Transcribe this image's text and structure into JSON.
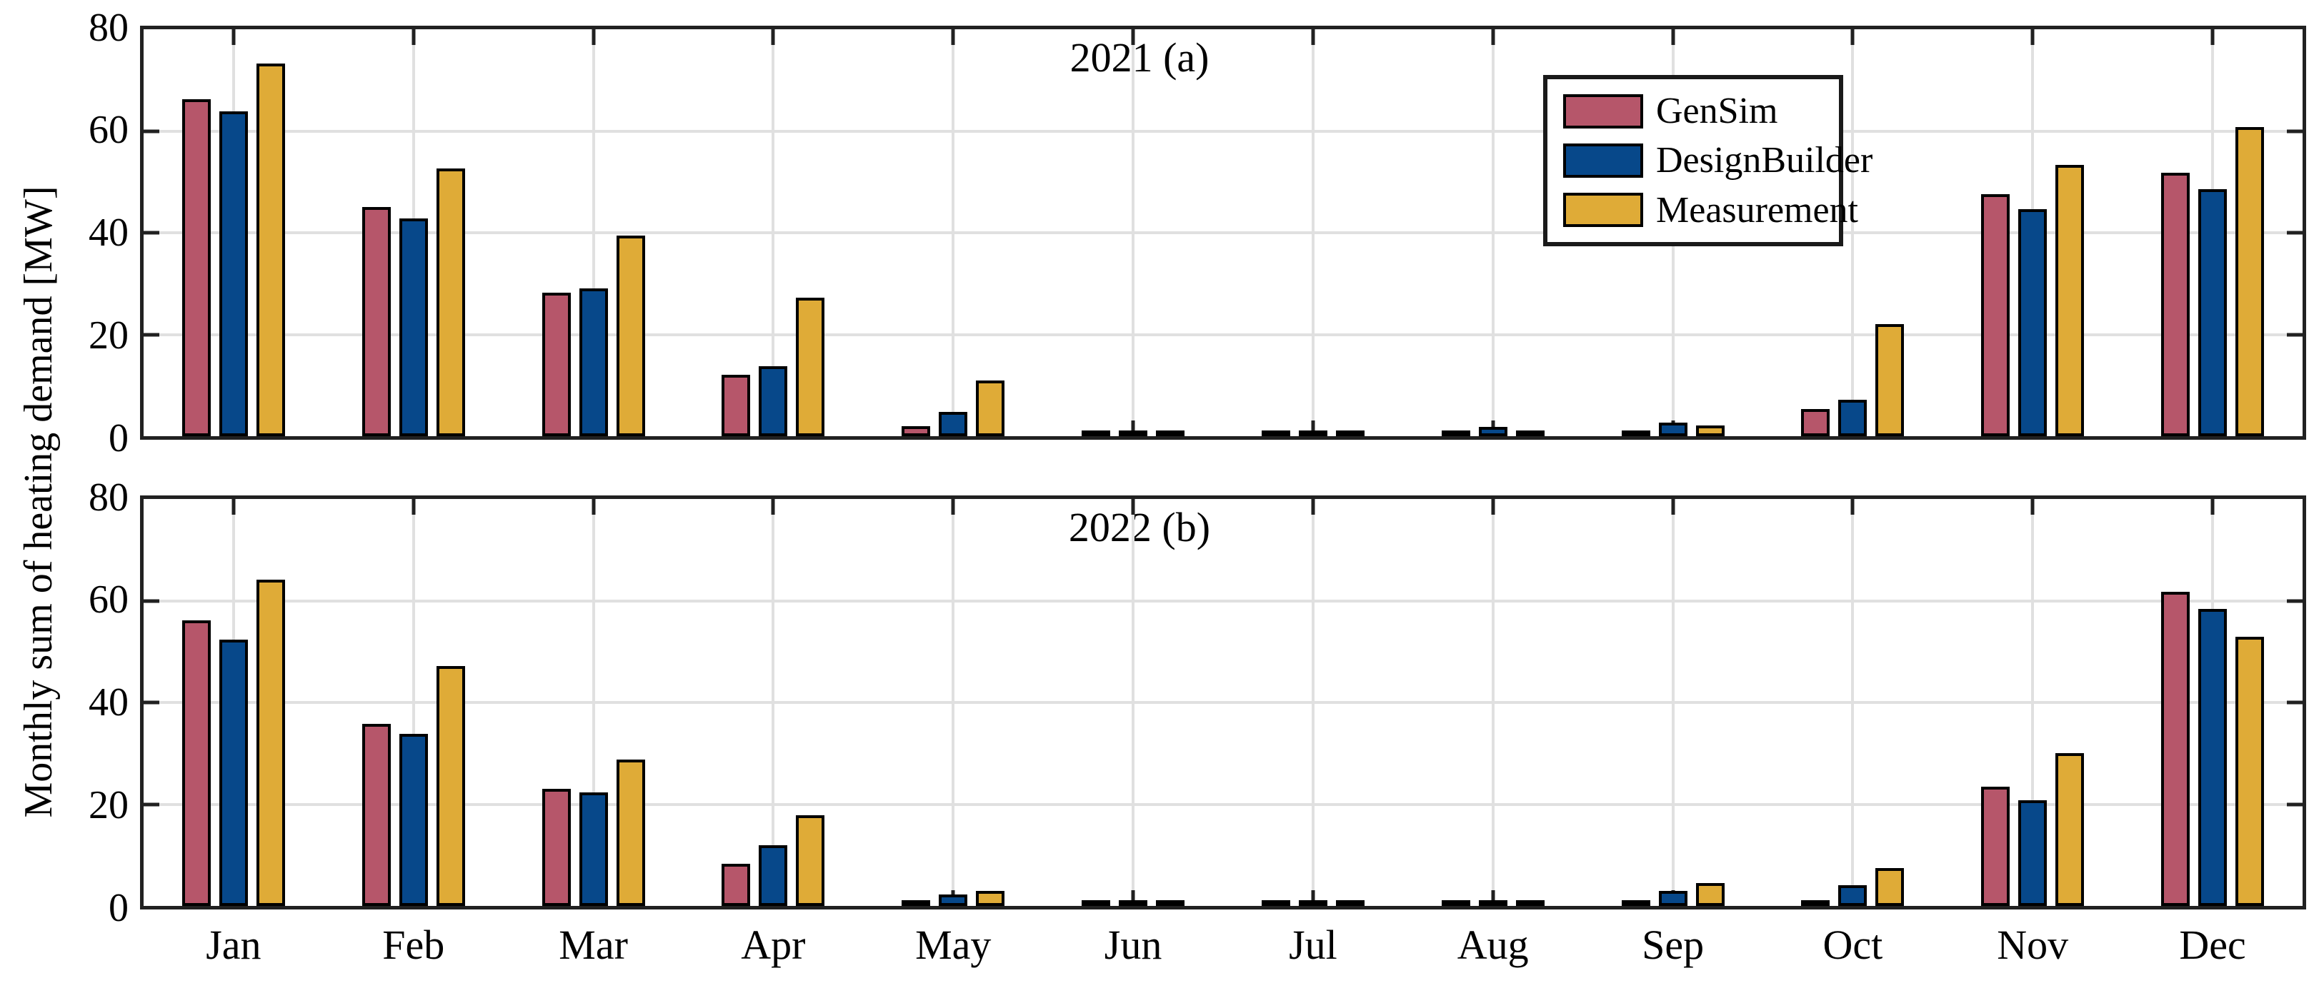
{
  "figure": {
    "ylabel": "Monthly sum of heating demand [MW]",
    "months": [
      "Jan",
      "Feb",
      "Mar",
      "Apr",
      "May",
      "Jun",
      "Jul",
      "Aug",
      "Sep",
      "Oct",
      "Nov",
      "Dec"
    ],
    "ytick_labels": [
      "0",
      "20",
      "40",
      "60",
      "80"
    ],
    "colors": {
      "gensim": "#b6566a",
      "designbuilder": "#07488a",
      "measurement": "#dfab37",
      "grid": "#e0e0e0",
      "axis": "#212121",
      "bar_border": "#000000"
    },
    "legend": {
      "items": [
        {
          "label": "GenSim",
          "color": "#b6566a"
        },
        {
          "label": "DesignBuilder",
          "color": "#07488a"
        },
        {
          "label": "Measurement",
          "color": "#dfab37"
        }
      ]
    }
  },
  "chart_data": [
    {
      "type": "bar",
      "title": "2021 (a)",
      "categories": [
        "Jan",
        "Feb",
        "Mar",
        "Apr",
        "May",
        "Jun",
        "Jul",
        "Aug",
        "Sep",
        "Oct",
        "Nov",
        "Dec"
      ],
      "series": [
        {
          "name": "GenSim",
          "color": "#b6566a",
          "values": [
            66.2,
            45.0,
            28.2,
            12.0,
            2.0,
            0.3,
            0.3,
            0.3,
            0.3,
            5.4,
            47.6,
            51.8
          ]
        },
        {
          "name": "DesignBuilder",
          "color": "#07488a",
          "values": [
            63.8,
            42.8,
            29.0,
            13.8,
            4.8,
            0.7,
            0.5,
            1.8,
            2.6,
            7.2,
            44.6,
            48.6
          ]
        },
        {
          "name": "Measurement",
          "color": "#dfab37",
          "values": [
            73.2,
            52.6,
            39.4,
            27.2,
            10.9,
            0.4,
            0.5,
            1.0,
            2.1,
            22.0,
            53.4,
            60.8
          ]
        }
      ],
      "xlabel": "",
      "ylabel": "Monthly sum of heating demand [MW]",
      "ylim": [
        0,
        80
      ],
      "yticks": [
        0,
        20,
        40,
        60,
        80
      ],
      "grid": true,
      "legend_position": "upper-right-inside"
    },
    {
      "type": "bar",
      "title": "2022 (b)",
      "categories": [
        "Jan",
        "Feb",
        "Mar",
        "Apr",
        "May",
        "Jun",
        "Jul",
        "Aug",
        "Sep",
        "Oct",
        "Nov",
        "Dec"
      ],
      "series": [
        {
          "name": "GenSim",
          "color": "#b6566a",
          "values": [
            56.2,
            35.8,
            23.0,
            8.3,
            0.3,
            0.2,
            0.2,
            0.2,
            0.9,
            0.4,
            23.5,
            61.7
          ]
        },
        {
          "name": "DesignBuilder",
          "color": "#07488a",
          "values": [
            52.3,
            33.8,
            22.3,
            11.9,
            2.2,
            0.8,
            0.4,
            0.3,
            3.0,
            4.1,
            20.8,
            58.4
          ]
        },
        {
          "name": "Measurement",
          "color": "#dfab37",
          "values": [
            64.2,
            47.2,
            28.8,
            17.8,
            3.0,
            1.0,
            0.4,
            0.7,
            4.5,
            7.5,
            30.0,
            52.9
          ]
        }
      ],
      "xlabel": "",
      "ylabel": "Monthly sum of heating demand [MW]",
      "ylim": [
        0,
        80
      ],
      "yticks": [
        0,
        20,
        40,
        60,
        80
      ],
      "grid": true,
      "legend_position": "none"
    }
  ]
}
